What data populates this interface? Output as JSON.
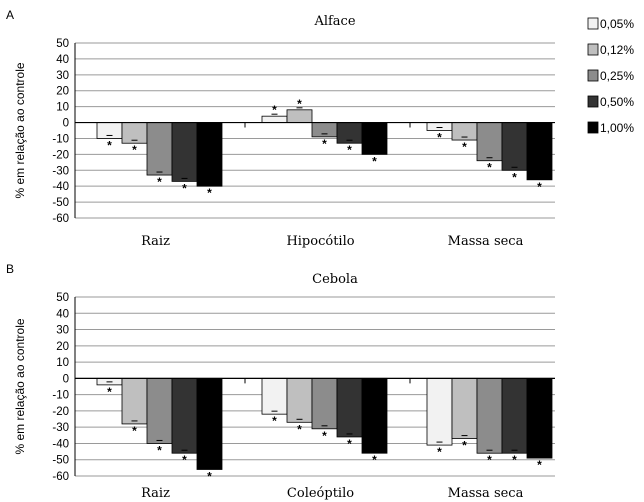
{
  "legend": [
    {
      "label": "0,05%",
      "color": "#f2f2f2"
    },
    {
      "label": "0,12%",
      "color": "#bfbfbf"
    },
    {
      "label": "0,25%",
      "color": "#8c8c8c"
    },
    {
      "label": "0,50%",
      "color": "#333333"
    },
    {
      "label": "1,00%",
      "color": "#000000"
    }
  ],
  "chart_data": [
    {
      "type": "bar",
      "panel_label": "A",
      "title": "Alface",
      "ylabel": "% em relação ao controle",
      "ylim": [
        -60,
        50
      ],
      "yticks": [
        50,
        40,
        30,
        20,
        10,
        0,
        -10,
        -20,
        -30,
        -40,
        -50,
        -60
      ],
      "grid": true,
      "categories": [
        "Raiz",
        "Hipocótilo",
        "Massa seca"
      ],
      "series": [
        {
          "name": "0,05%",
          "values": [
            -10,
            4,
            -5
          ]
        },
        {
          "name": "0,12%",
          "values": [
            -13,
            8,
            -11
          ]
        },
        {
          "name": "0,25%",
          "values": [
            -33,
            -9,
            -24
          ]
        },
        {
          "name": "0,50%",
          "values": [
            -37,
            -13,
            -30
          ]
        },
        {
          "name": "1,00%",
          "values": [
            -40,
            -20,
            -36
          ]
        }
      ],
      "significance": "*"
    },
    {
      "type": "bar",
      "panel_label": "B",
      "title": "Cebola",
      "ylabel": "% em relação ao controle",
      "ylim": [
        -60,
        50
      ],
      "yticks": [
        50,
        40,
        30,
        20,
        10,
        0,
        -10,
        -20,
        -30,
        -40,
        -50,
        -60
      ],
      "grid": true,
      "categories": [
        "Raiz",
        "Coleóptilo",
        "Massa seca"
      ],
      "series": [
        {
          "name": "0,05%",
          "values": [
            -4,
            -22,
            -41
          ]
        },
        {
          "name": "0,12%",
          "values": [
            -28,
            -27,
            -37
          ]
        },
        {
          "name": "0,25%",
          "values": [
            -40,
            -31,
            -46
          ]
        },
        {
          "name": "0,50%",
          "values": [
            -46,
            -36,
            -46
          ]
        },
        {
          "name": "1,00%",
          "values": [
            -56,
            -46,
            -49
          ]
        }
      ],
      "significance": "*"
    }
  ]
}
